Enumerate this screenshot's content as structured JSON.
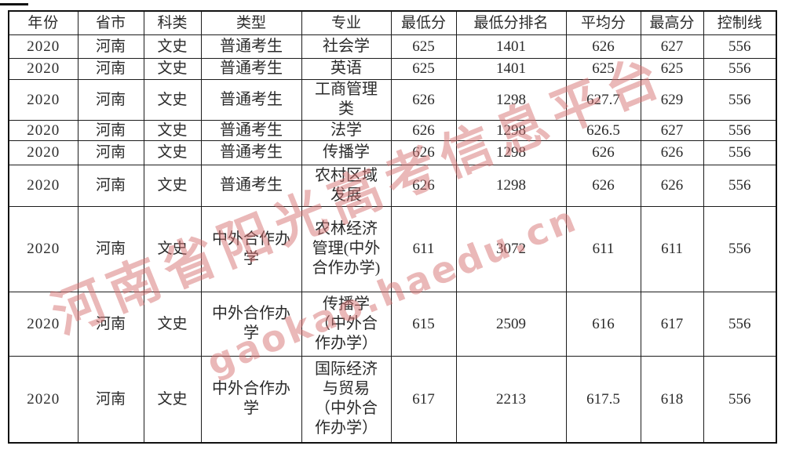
{
  "watermark": {
    "chinese_text": "河南省阳光高考信息平台",
    "latin_text": "gaokao.haedu.cn",
    "color": "#d67272"
  },
  "table": {
    "headers": [
      "年份",
      "省市",
      "科类",
      "类型",
      "专业",
      "最低分",
      "最低分排名",
      "平均分",
      "最高分",
      "控制线"
    ],
    "rows": [
      [
        "2020",
        "河南",
        "文史",
        "普通考生",
        "社会学",
        "625",
        "1401",
        "626",
        "627",
        "556"
      ],
      [
        "2020",
        "河南",
        "文史",
        "普通考生",
        "英语",
        "625",
        "1401",
        "625",
        "625",
        "556"
      ],
      [
        "2020",
        "河南",
        "文史",
        "普通考生",
        "工商管理类",
        "626",
        "1298",
        "627.7",
        "629",
        "556"
      ],
      [
        "2020",
        "河南",
        "文史",
        "普通考生",
        "法学",
        "626",
        "1298",
        "626.5",
        "627",
        "556"
      ],
      [
        "2020",
        "河南",
        "文史",
        "普通考生",
        "传播学",
        "626",
        "1298",
        "626",
        "626",
        "556"
      ],
      [
        "2020",
        "河南",
        "文史",
        "普通考生",
        "农村区域发展",
        "626",
        "1298",
        "626",
        "626",
        "556"
      ],
      [
        "2020",
        "河南",
        "文史",
        "中外合作办学",
        "农林经济管理(中外合作办学)",
        "611",
        "3072",
        "611",
        "611",
        "556"
      ],
      [
        "2020",
        "河南",
        "文史",
        "中外合作办学",
        "传播学（中外合作办学）",
        "615",
        "2509",
        "616",
        "617",
        "556"
      ],
      [
        "2020",
        "河南",
        "文史",
        "中外合作办学",
        "国际经济与贸易（中外合作办学）",
        "617",
        "2213",
        "617.5",
        "618",
        "556"
      ]
    ]
  }
}
